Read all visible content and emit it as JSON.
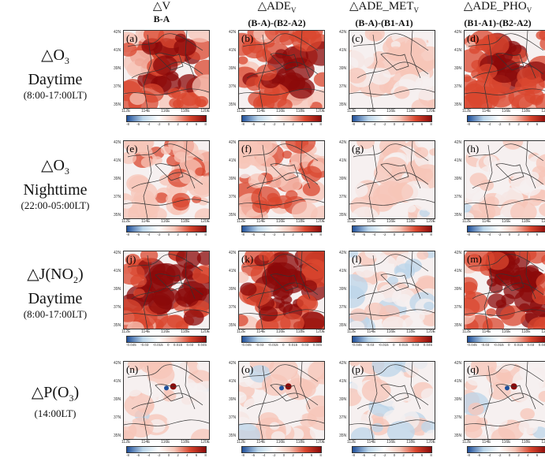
{
  "columns": [
    {
      "line1_prefix": "△V",
      "line1_sub": "",
      "line2": "B-A"
    },
    {
      "line1_prefix": "△ADE",
      "line1_sub": "V",
      "line2": "(B-A)-(B2-A2)"
    },
    {
      "line1_prefix": "△ADE_MET",
      "line1_sub": "V",
      "line2": "(B-A)-(B1-A1)"
    },
    {
      "line1_prefix": "△ADE_PHO",
      "line1_sub": "V",
      "line2": "(B1-A1)-(B2-A2)"
    }
  ],
  "rows": [
    {
      "var_prefix": "△O",
      "var_sub": "3",
      "var_suffix": "",
      "period": "Daytime",
      "time": "(8:00-17:00LT)"
    },
    {
      "var_prefix": "△O",
      "var_sub": "3",
      "var_suffix": "",
      "period": "Nighttime",
      "time": "(22:00-05:00LT)"
    },
    {
      "var_prefix": "△J(NO",
      "var_sub": "2",
      "var_suffix": ")",
      "period": "Daytime",
      "time": "(8:00-17:00LT)"
    },
    {
      "var_prefix": "△P(O",
      "var_sub": "3",
      "var_suffix": ")",
      "period": "",
      "time": "(14:00LT)"
    }
  ],
  "panel_labels": [
    "(a)",
    "(b)",
    "(c)",
    "(d)",
    "(e)",
    "(f)",
    "(g)",
    "(h)",
    "(j)",
    "(k)",
    "(l)",
    "(m)",
    "(n)",
    "(o)",
    "(p)",
    "(q)"
  ],
  "lat_labels": [
    "42N",
    "41N",
    "39N",
    "37N",
    "35N"
  ],
  "lon_labels": [
    "112E",
    "114E",
    "116E",
    "118E",
    "120E"
  ],
  "colorbar_ticks": {
    "o3": [
      "-8",
      "-6",
      "-4",
      "-2",
      "0",
      "2",
      "4",
      "6",
      "8"
    ],
    "jno2": [
      "-0.045",
      "-0.03",
      "-0.015",
      "0",
      "0.015",
      "0.03",
      "0.045"
    ]
  },
  "colors": {
    "pos_strong": "#8b0a0a",
    "pos_mid": "#d9472f",
    "pos_weak": "#f7c6b8",
    "neutral": "#f6f0f0",
    "neg_weak": "#bcd6ea",
    "neg_strong": "#1f4f9a"
  }
}
